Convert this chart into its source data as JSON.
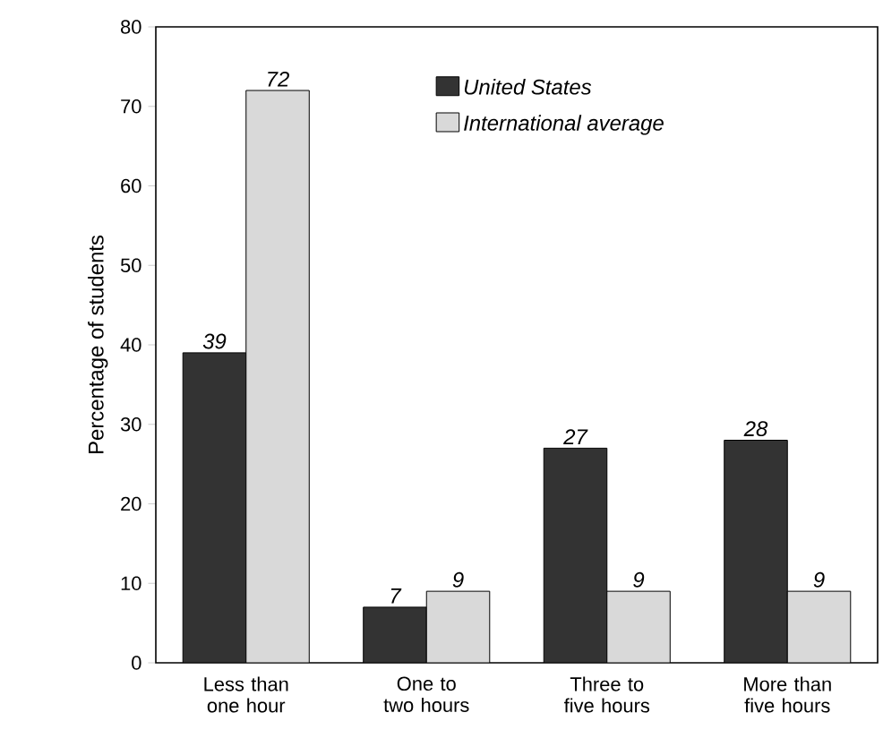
{
  "chart_data": {
    "type": "bar",
    "ylabel": "Percentage of students",
    "categories": [
      "Less than one hour",
      "One to two hours",
      "Three to five hours",
      "More than five hours"
    ],
    "series": [
      {
        "name": "United States",
        "color": "#333333",
        "values": [
          39,
          7,
          27,
          28
        ]
      },
      {
        "name": "International average",
        "color": "#d9d9d9",
        "values": [
          72,
          9,
          9,
          9
        ]
      }
    ],
    "ylim": [
      0,
      80
    ],
    "yticks": [
      0,
      10,
      20,
      30,
      40,
      50,
      60,
      70,
      80
    ],
    "legend": "top right",
    "data_labels": true
  }
}
